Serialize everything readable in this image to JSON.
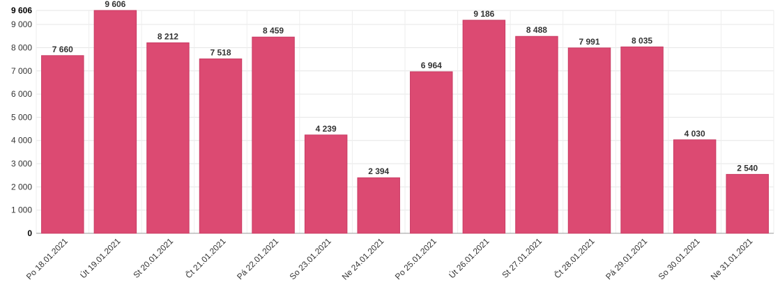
{
  "chart_data": {
    "type": "bar",
    "title": "",
    "xlabel": "",
    "ylabel": "",
    "categories": [
      "Po 18.01.2021",
      "Út 19.01.2021",
      "St 20.01.2021",
      "Čt 21.01.2021",
      "Pá 22.01.2021",
      "So 23.01.2021",
      "Ne 24.01.2021",
      "Po 25.01.2021",
      "Út 26.01.2021",
      "St 27.01.2021",
      "Čt 28.01.2021",
      "Pá 29.01.2021",
      "So 30.01.2021",
      "Ne 31.01.2021"
    ],
    "values": [
      7660,
      9606,
      8212,
      7518,
      8459,
      4239,
      2394,
      6964,
      9186,
      8488,
      7991,
      8035,
      4030,
      2540
    ],
    "value_labels": [
      "7 660",
      "9 606",
      "8 212",
      "7 518",
      "8 459",
      "4 239",
      "2 394",
      "6 964",
      "9 186",
      "8 488",
      "7 991",
      "8 035",
      "4 030",
      "2 540"
    ],
    "y_ticks": [
      0,
      1000,
      2000,
      3000,
      4000,
      5000,
      6000,
      7000,
      8000,
      9000
    ],
    "y_tick_labels": [
      "0",
      "1 000",
      "2 000",
      "3 000",
      "4 000",
      "5 000",
      "6 000",
      "7 000",
      "8 000",
      "9 000"
    ],
    "y_max_tick": 9606,
    "y_max_tick_label": "9 606",
    "ylim": [
      0,
      9606
    ],
    "grid": true,
    "legend": "none",
    "bar_color": "#dc4a72"
  }
}
